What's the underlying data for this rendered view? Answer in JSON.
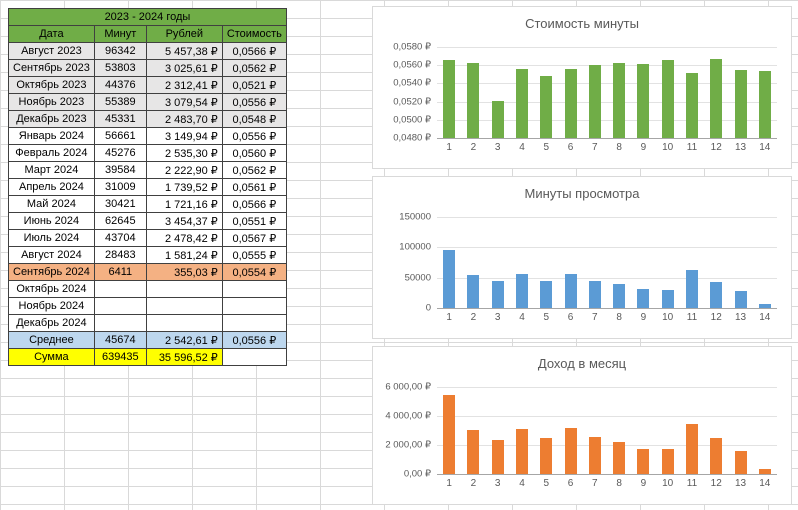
{
  "sheet": {
    "table": {
      "title": "2023 - 2024 годы",
      "columns": [
        "Дата",
        "Минут",
        "Рублей",
        "Стоимость"
      ],
      "rows": [
        {
          "date": "Август 2023",
          "minutes": "96342",
          "rubles": "5 457,38 ₽",
          "cost": "0,0566 ₽",
          "style": "gray"
        },
        {
          "date": "Сентябрь 2023",
          "minutes": "53803",
          "rubles": "3 025,61 ₽",
          "cost": "0,0562 ₽",
          "style": "gray"
        },
        {
          "date": "Октябрь 2023",
          "minutes": "44376",
          "rubles": "2 312,41 ₽",
          "cost": "0,0521 ₽",
          "style": "gray"
        },
        {
          "date": "Ноябрь 2023",
          "minutes": "55389",
          "rubles": "3 079,54 ₽",
          "cost": "0,0556 ₽",
          "style": "gray"
        },
        {
          "date": "Декабрь 2023",
          "minutes": "45331",
          "rubles": "2 483,70 ₽",
          "cost": "0,0548 ₽",
          "style": "gray"
        },
        {
          "date": "Январь 2024",
          "minutes": "56661",
          "rubles": "3 149,94 ₽",
          "cost": "0,0556 ₽",
          "style": "plain"
        },
        {
          "date": "Февраль 2024",
          "minutes": "45276",
          "rubles": "2 535,30 ₽",
          "cost": "0,0560 ₽",
          "style": "plain"
        },
        {
          "date": "Март 2024",
          "minutes": "39584",
          "rubles": "2 222,90 ₽",
          "cost": "0,0562 ₽",
          "style": "plain"
        },
        {
          "date": "Апрель 2024",
          "minutes": "31009",
          "rubles": "1 739,52 ₽",
          "cost": "0,0561 ₽",
          "style": "plain"
        },
        {
          "date": "Май 2024",
          "minutes": "30421",
          "rubles": "1 721,16 ₽",
          "cost": "0,0566 ₽",
          "style": "plain"
        },
        {
          "date": "Июнь 2024",
          "minutes": "62645",
          "rubles": "3 454,37 ₽",
          "cost": "0,0551 ₽",
          "style": "plain"
        },
        {
          "date": "Июль 2024",
          "minutes": "43704",
          "rubles": "2 478,42 ₽",
          "cost": "0,0567 ₽",
          "style": "plain"
        },
        {
          "date": "Август 2024",
          "minutes": "28483",
          "rubles": "1 581,24 ₽",
          "cost": "0,0555 ₽",
          "style": "plain"
        },
        {
          "date": "Сентябрь 2024",
          "minutes": "6411",
          "rubles": "355,03 ₽",
          "cost": "0,0554 ₽",
          "style": "highlight"
        },
        {
          "date": "Октябрь 2024",
          "minutes": "",
          "rubles": "",
          "cost": "",
          "style": "plain"
        },
        {
          "date": "Ноябрь 2024",
          "minutes": "",
          "rubles": "",
          "cost": "",
          "style": "plain"
        },
        {
          "date": "Декабрь 2024",
          "minutes": "",
          "rubles": "",
          "cost": "",
          "style": "plain"
        },
        {
          "date": "Среднее",
          "minutes": "45674",
          "rubles": "2 542,61 ₽",
          "cost": "0,0556 ₽",
          "style": "average"
        },
        {
          "date": "Сумма",
          "minutes": "639435",
          "rubles": "35 596,52 ₽",
          "cost": "",
          "style": "sum"
        }
      ]
    },
    "colors": {
      "header_green": "#70AD47",
      "gray_row": "#E7E6E6",
      "highlight_row": "#F4B183",
      "average_row": "#BDD7EE",
      "sum_row": "#FFFF00"
    }
  },
  "chart_data": [
    {
      "type": "bar",
      "title": "Стоимость минуты",
      "categories": [
        "1",
        "2",
        "3",
        "4",
        "5",
        "6",
        "7",
        "8",
        "9",
        "10",
        "11",
        "12",
        "13",
        "14"
      ],
      "values": [
        0.0566,
        0.0562,
        0.0521,
        0.0556,
        0.0548,
        0.0556,
        0.056,
        0.0562,
        0.0561,
        0.0566,
        0.0551,
        0.0567,
        0.0555,
        0.0554
      ],
      "ylim": [
        0.048,
        0.058
      ],
      "yticks": [
        "0,0580 ₽",
        "0,0560 ₽",
        "0,0540 ₽",
        "0,0520 ₽",
        "0,0500 ₽",
        "0,0480 ₽"
      ],
      "bar_color": "#70AD47",
      "grid": true,
      "legend": "none"
    },
    {
      "type": "bar",
      "title": "Минуты просмотра",
      "categories": [
        "1",
        "2",
        "3",
        "4",
        "5",
        "6",
        "7",
        "8",
        "9",
        "10",
        "11",
        "12",
        "13",
        "14"
      ],
      "values": [
        96342,
        53803,
        44376,
        55389,
        45331,
        56661,
        45276,
        39584,
        31009,
        30421,
        62645,
        43704,
        28483,
        6411
      ],
      "ylim": [
        0,
        150000
      ],
      "yticks": [
        "150000",
        "100000",
        "50000",
        "0"
      ],
      "bar_color": "#5B9BD5",
      "grid": true,
      "legend": "none"
    },
    {
      "type": "bar",
      "title": "Доход в месяц",
      "categories": [
        "1",
        "2",
        "3",
        "4",
        "5",
        "6",
        "7",
        "8",
        "9",
        "10",
        "11",
        "12",
        "13",
        "14"
      ],
      "values": [
        5457.38,
        3025.61,
        2312.41,
        3079.54,
        2483.7,
        3149.94,
        2535.3,
        2222.9,
        1739.52,
        1721.16,
        3454.37,
        2478.42,
        1581.24,
        355.03
      ],
      "ylim": [
        0,
        6000
      ],
      "yticks": [
        "6 000,00 ₽",
        "4 000,00 ₽",
        "2 000,00 ₽",
        "0,00 ₽"
      ],
      "bar_color": "#ED7D31",
      "grid": true,
      "legend": "none"
    }
  ]
}
